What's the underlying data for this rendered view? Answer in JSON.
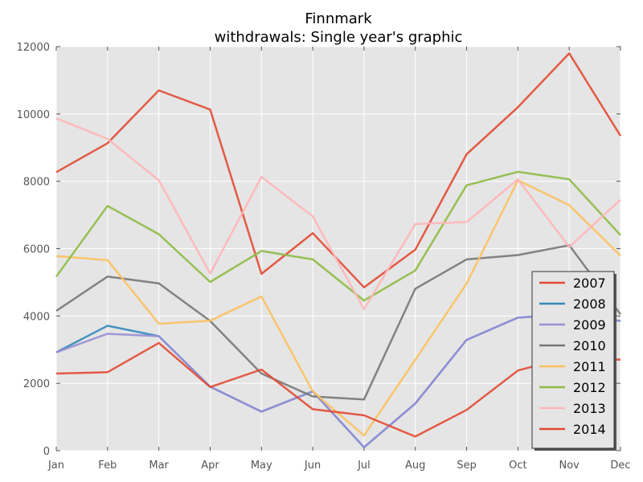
{
  "chart_data": {
    "type": "line",
    "title": "Finnmark",
    "subtitle": "withdrawals: Single year's graphic",
    "xlabel": "",
    "ylabel": "",
    "categories": [
      "Jan",
      "Feb",
      "Mar",
      "Apr",
      "May",
      "Jun",
      "Jul",
      "Aug",
      "Sep",
      "Oct",
      "Nov",
      "Dec"
    ],
    "ylim": [
      0,
      12000
    ],
    "yticks": [
      "0",
      "2000",
      "4000",
      "6000",
      "8000",
      "10000",
      "12000"
    ],
    "grid": true,
    "legend_position": "bottom-right",
    "background_color": "#e5e5e5",
    "series": [
      {
        "name": "2007",
        "color": "#e24a33",
        "values": [
          8270,
          9130,
          10700,
          10130,
          5250,
          6460,
          4850,
          5970,
          8800,
          10200,
          11800,
          9350
        ]
      },
      {
        "name": "2008",
        "color": "#348abd",
        "values": [
          2920,
          3710,
          3400,
          1900,
          1160,
          1760,
          100,
          1400,
          3290,
          3950,
          4050,
          3850
        ]
      },
      {
        "name": "2009",
        "color": "#988ed5",
        "values": [
          2920,
          3470,
          3400,
          1900,
          1160,
          1760,
          100,
          1400,
          3290,
          3950,
          4050,
          3850
        ]
      },
      {
        "name": "2010",
        "color": "#777777",
        "values": [
          4150,
          5170,
          4970,
          3850,
          2290,
          1610,
          1520,
          4810,
          5680,
          5810,
          6100,
          4050
        ]
      },
      {
        "name": "2011",
        "color": "#fbc15e",
        "values": [
          5780,
          5660,
          3770,
          3860,
          4580,
          1760,
          450,
          2700,
          4960,
          8030,
          7290,
          5790
        ]
      },
      {
        "name": "2012",
        "color": "#8eba42",
        "values": [
          5170,
          7270,
          6430,
          5010,
          5930,
          5680,
          4460,
          5350,
          7880,
          8280,
          8060,
          6400
        ]
      },
      {
        "name": "2013",
        "color": "#ffb5b8",
        "values": [
          9870,
          9260,
          8030,
          5260,
          8130,
          6960,
          4200,
          6730,
          6790,
          8060,
          6050,
          7450
        ]
      },
      {
        "name": "2014",
        "color": "#e24a33",
        "values": [
          2290,
          2330,
          3200,
          1890,
          2410,
          1230,
          1050,
          420,
          1210,
          2380,
          2790,
          2700
        ]
      }
    ]
  }
}
